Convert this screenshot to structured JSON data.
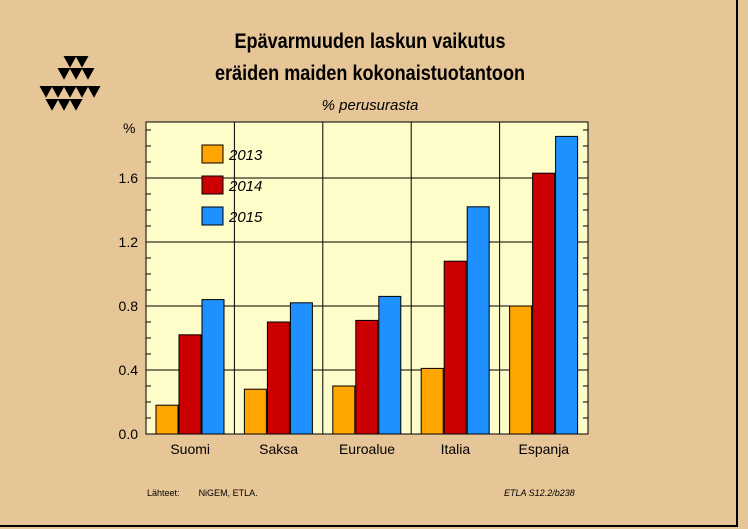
{
  "header": {
    "title_line1": "Epävarmuuden laskun vaikutus",
    "title_line2": "eräiden maiden kokonaistuotantoon",
    "subtitle": "% perusurasta"
  },
  "footer": {
    "source_label": "Lähteet:",
    "source_text": "NiGEM, ETLA.",
    "code": "ETLA S12.2/b238"
  },
  "logo": {
    "icon": "etla-triangles-logo"
  },
  "colors": {
    "background": "#e6c596",
    "plot_bg": "#fefcc8",
    "s2013": "#ffa500",
    "s2014": "#cc0000",
    "s2015": "#1e90ff"
  },
  "chart_data": {
    "type": "bar",
    "categories": [
      "Suomi",
      "Saksa",
      "Euroalue",
      "Italia",
      "Espanja"
    ],
    "series": [
      {
        "name": "2013",
        "values": [
          0.18,
          0.28,
          0.3,
          0.41,
          0.8
        ]
      },
      {
        "name": "2014",
        "values": [
          0.62,
          0.7,
          0.71,
          1.08,
          1.63
        ]
      },
      {
        "name": "2015",
        "values": [
          0.84,
          0.82,
          0.86,
          1.42,
          1.86
        ]
      }
    ],
    "ylabel": "%",
    "ylim": [
      0,
      1.95
    ],
    "yticks": [
      "0.0",
      "0.4",
      "0.8",
      "1.2",
      "1.6"
    ],
    "ytick_values": [
      0,
      0.4,
      0.8,
      1.2,
      1.6
    ],
    "grid": true,
    "legend_position": "top-left"
  }
}
